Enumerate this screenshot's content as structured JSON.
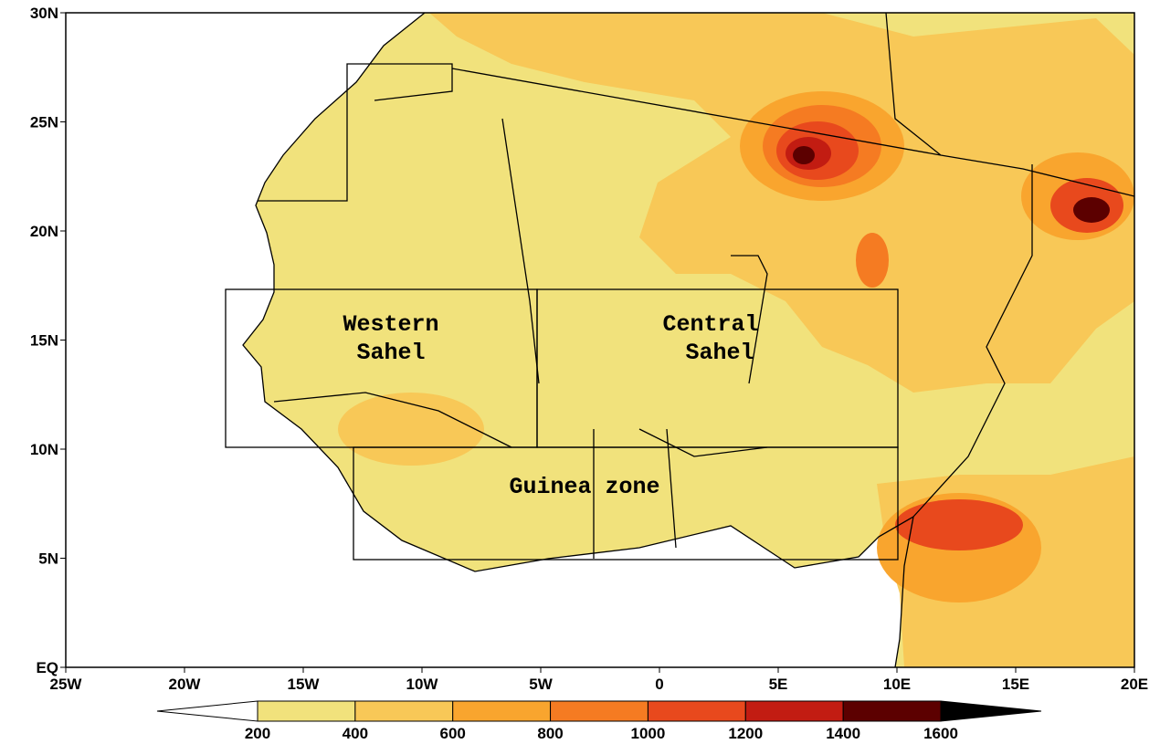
{
  "map": {
    "lon_lim": [
      -25,
      20
    ],
    "lat_lim": [
      0,
      30
    ],
    "lat_ticks": [
      {
        "value": 30,
        "label": "30N"
      },
      {
        "value": 25,
        "label": "25N"
      },
      {
        "value": 20,
        "label": "20N"
      },
      {
        "value": 15,
        "label": "15N"
      },
      {
        "value": 10,
        "label": "10N"
      },
      {
        "value": 5,
        "label": "5N"
      },
      {
        "value": 0,
        "label": "EQ"
      }
    ],
    "lon_ticks": [
      {
        "value": -25,
        "label": "25W"
      },
      {
        "value": -20,
        "label": "20W"
      },
      {
        "value": -15,
        "label": "15W"
      },
      {
        "value": -10,
        "label": "10W"
      },
      {
        "value": -5,
        "label": "5W"
      },
      0,
      {
        "value": 5,
        "label": "5E"
      },
      {
        "value": 10,
        "label": "10E"
      },
      {
        "value": 15,
        "label": "15E"
      },
      {
        "value": 20,
        "label": "20E"
      }
    ],
    "regions": [
      {
        "lines": [
          "Western",
          "Sahel"
        ]
      },
      {
        "lines": [
          "Central",
          "Sahel"
        ]
      },
      {
        "lines": [
          "Guinea zone"
        ]
      }
    ],
    "colorbar": {
      "levels": [
        200,
        400,
        600,
        800,
        1000,
        1200,
        1400,
        1600
      ],
      "colors": [
        "#ffffff",
        "#f1e27c",
        "#f8c857",
        "#f9a52e",
        "#f57b22",
        "#e8491d",
        "#c21c12",
        "#5c0000",
        "#000000"
      ]
    }
  }
}
